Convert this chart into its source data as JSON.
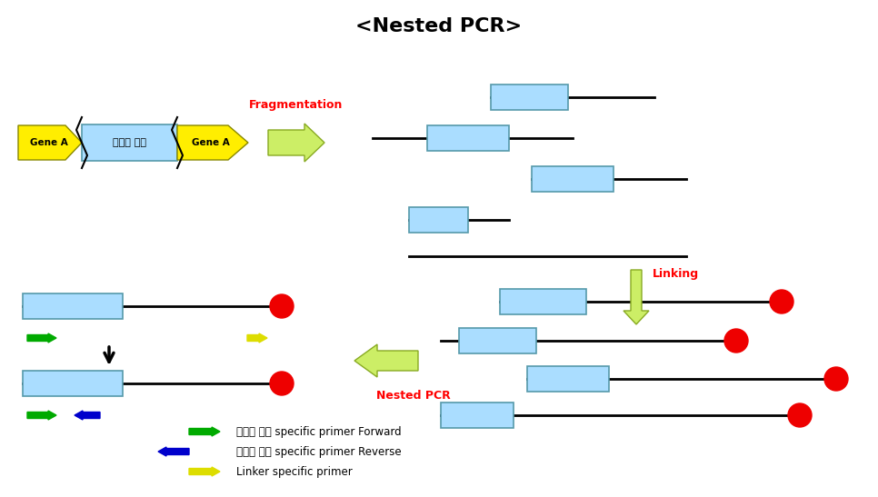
{
  "title": "<Nested PCR>",
  "title_fontsize": 16,
  "background_color": "#ffffff",
  "legend_items": [
    {
      "label": "항생제 마커 specific primer Forward",
      "color": "#00aa00",
      "direction": "right"
    },
    {
      "label": "항생제 마커 specific primer Reverse",
      "color": "#0000cc",
      "direction": "left"
    },
    {
      "label": "Linker specific primer",
      "color": "#ffee00",
      "direction": "right"
    }
  ],
  "gene_a_color": "#ffee00",
  "marker_color": "#aaddff",
  "red_circle_color": "#ee0000",
  "frag_arrow_color": "#99cc44",
  "link_arrow_color": "#99cc44",
  "nested_arrow_color": "#99cc44",
  "black_arrow_color": "#000000",
  "frag_label_color": "#ff0000",
  "link_label_color": "#ff0000",
  "nested_label_color": "#ff0000"
}
